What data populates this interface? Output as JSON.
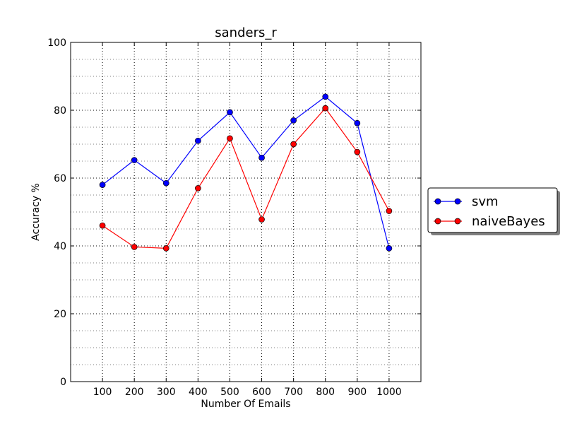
{
  "chart_data": {
    "type": "line",
    "title": "sanders_r",
    "xlabel": "Number Of Emails",
    "ylabel": "Accuracy %",
    "x": [
      100,
      200,
      300,
      400,
      500,
      600,
      700,
      800,
      900,
      1000
    ],
    "x_ticks": [
      "100",
      "200",
      "300",
      "400",
      "500",
      "600",
      "700",
      "800",
      "900",
      "1000"
    ],
    "y_ticks": [
      "0",
      "20",
      "40",
      "60",
      "80",
      "100"
    ],
    "xlim": [
      0,
      1100
    ],
    "ylim": [
      0,
      100
    ],
    "grid": true,
    "legend_position": "outside-right",
    "series": [
      {
        "name": "svm",
        "color": "#0000ff",
        "values": [
          58,
          65.3,
          58.5,
          71,
          79.4,
          66,
          77,
          84,
          76.2,
          39.3
        ]
      },
      {
        "name": "naiveBayes",
        "color": "#ff0000",
        "values": [
          46,
          39.7,
          39.3,
          57,
          71.7,
          47.8,
          70,
          80.6,
          67.7,
          50.3
        ]
      }
    ]
  }
}
